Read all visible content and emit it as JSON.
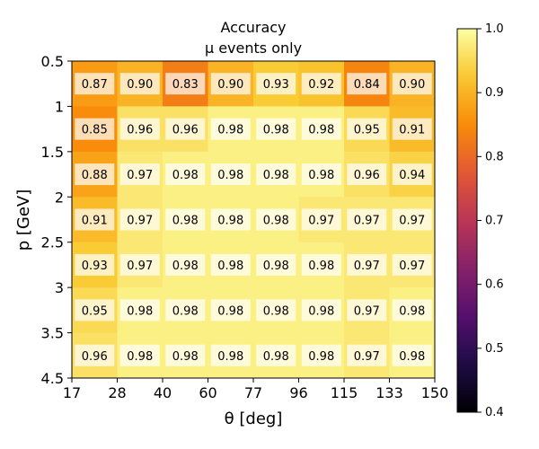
{
  "chart_data": {
    "type": "heatmap",
    "title": "Accuracy",
    "subtitle": "μ events only",
    "xlabel": "θ [deg]",
    "ylabel": "p [GeV]",
    "x_edges": [
      "17",
      "28",
      "40",
      "60",
      "77",
      "96",
      "115",
      "133",
      "150"
    ],
    "y_edges": [
      "0.5",
      "1",
      "1.5",
      "2",
      "2.5",
      "3",
      "3.5",
      "4.5"
    ],
    "values": [
      [
        0.87,
        0.9,
        0.83,
        0.9,
        0.93,
        0.92,
        0.84,
        0.9
      ],
      [
        0.85,
        0.96,
        0.96,
        0.98,
        0.98,
        0.98,
        0.95,
        0.91
      ],
      [
        0.88,
        0.97,
        0.98,
        0.98,
        0.98,
        0.98,
        0.96,
        0.94
      ],
      [
        0.91,
        0.97,
        0.98,
        0.98,
        0.98,
        0.97,
        0.97,
        0.97
      ],
      [
        0.93,
        0.97,
        0.98,
        0.98,
        0.98,
        0.98,
        0.97,
        0.97
      ],
      [
        0.95,
        0.98,
        0.98,
        0.98,
        0.98,
        0.98,
        0.97,
        0.98
      ],
      [
        0.96,
        0.98,
        0.98,
        0.98,
        0.98,
        0.98,
        0.97,
        0.98
      ]
    ],
    "colorbar": {
      "colormap": "inferno",
      "vmin": 0.4,
      "vmax": 1.0,
      "ticks": [
        "0.4",
        "0.5",
        "0.6",
        "0.7",
        "0.8",
        "0.9",
        "1.0"
      ]
    }
  }
}
